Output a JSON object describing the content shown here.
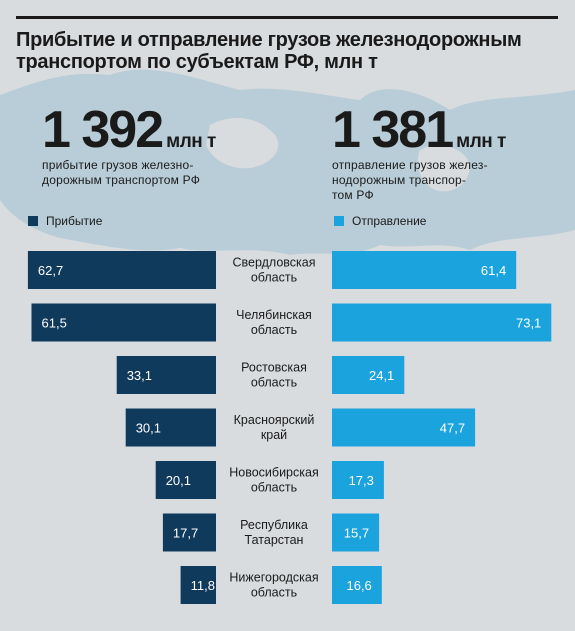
{
  "title": "Прибытие и отправление грузов железнодорожным транспортом по субъектам РФ, млн т",
  "arrival_total": {
    "value": "1 392",
    "unit": "млн т",
    "caption": "прибытие грузов железно-\nдорожным транспортом РФ"
  },
  "departure_total": {
    "value": "1 381",
    "unit": "млн т",
    "caption": "отправление грузов желез-\nнодорожным транспор-\nтом РФ"
  },
  "colors": {
    "arrival": "#0f3a5c",
    "departure": "#1aa3dd",
    "background": "#d9dcdf",
    "map": "#b9cdd8"
  },
  "chart_data": {
    "type": "bar",
    "orientation": "horizontal-butterfly",
    "categories": [
      "Свердловская\nобласть",
      "Челябинская\nобласть",
      "Ростовская\nобласть",
      "Красноярский\nкрай",
      "Новосибирская\nобласть",
      "Республика\nТатарстан",
      "Нижегородская\nобласть"
    ],
    "series": [
      {
        "name": "Прибытие",
        "values": [
          62.7,
          61.5,
          33.1,
          30.1,
          20.1,
          17.7,
          11.8
        ],
        "labels": [
          "62,7",
          "61,5",
          "33,1",
          "30,1",
          "20,1",
          "17,7",
          "11,8"
        ]
      },
      {
        "name": "Отправление",
        "values": [
          61.4,
          73.1,
          24.1,
          47.7,
          17.3,
          15.7,
          16.6
        ],
        "labels": [
          "61,4",
          "73,1",
          "24,1",
          "47,7",
          "17,3",
          "15,7",
          "16,6"
        ]
      }
    ]
  }
}
